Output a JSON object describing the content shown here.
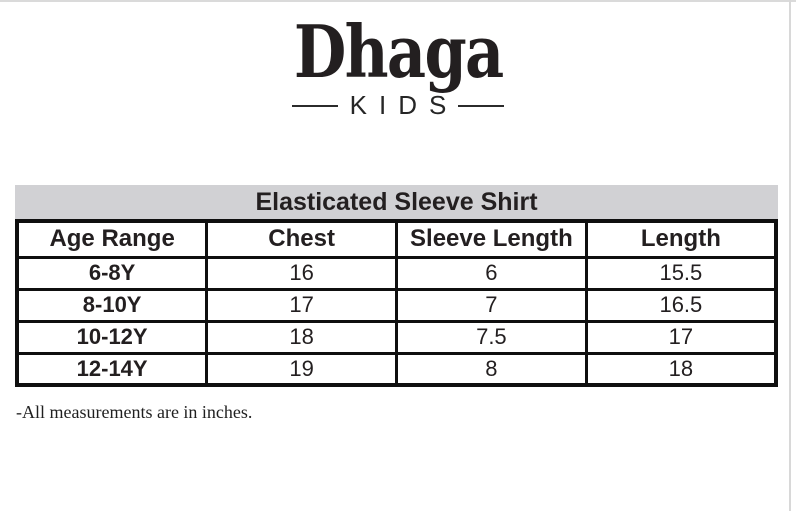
{
  "brand": {
    "name": "Dhaga",
    "subtitle": "KIDS"
  },
  "chart_data": {
    "type": "table",
    "title": "Elasticated Sleeve Shirt",
    "columns": [
      "Age Range",
      "Chest",
      "Sleeve Length",
      "Length"
    ],
    "rows": [
      [
        "6-8Y",
        "16",
        "6",
        "15.5"
      ],
      [
        "8-10Y",
        "17",
        "7",
        "16.5"
      ],
      [
        "10-12Y",
        "18",
        "7.5",
        "17"
      ],
      [
        "12-14Y",
        "19",
        "8",
        "18"
      ]
    ],
    "units_note": "-All measurements are in inches."
  },
  "colors": {
    "title_band": "#d1d1d4",
    "text": "#231f20",
    "border": "#0f0f0f",
    "page_edge": "#d8d8d8"
  }
}
